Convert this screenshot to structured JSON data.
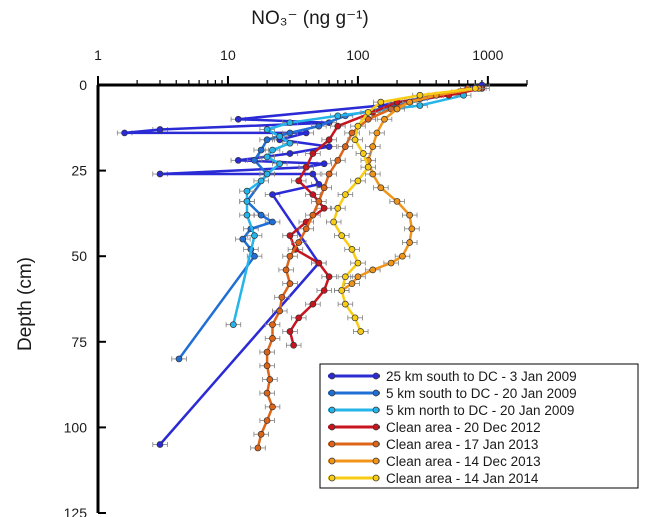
{
  "chart_data": {
    "type": "line",
    "title": "",
    "xlabel": "NO₃⁻ (ng g⁻¹)",
    "ylabel": "Depth (cm)",
    "x_scale": "log",
    "x_axis_position": "top",
    "y_inverted": true,
    "xlim": [
      1,
      2000
    ],
    "ylim": [
      0,
      125
    ],
    "x_ticks": [
      1,
      10,
      100,
      1000
    ],
    "x_tick_labels": [
      "1",
      "10",
      "100",
      "1000"
    ],
    "y_ticks": [
      0,
      25,
      50,
      75,
      100,
      125
    ],
    "y_tick_labels": [
      "0",
      "25",
      "50",
      "75",
      "100",
      "125"
    ],
    "grid": false,
    "legend_position": "bottom-right",
    "series": [
      {
        "name": "25 km  south to DC - 3 Jan 2009",
        "color": "#2b2bd6",
        "points": [
          [
            900,
            0
          ],
          [
            400,
            3
          ],
          [
            150,
            6
          ],
          [
            12,
            10
          ],
          [
            60,
            11
          ],
          [
            3,
            13
          ],
          [
            1.6,
            14
          ],
          [
            40,
            14
          ],
          [
            25,
            16
          ],
          [
            60,
            18
          ],
          [
            30,
            20
          ],
          [
            12,
            22
          ],
          [
            55,
            23
          ],
          [
            40,
            24
          ],
          [
            3,
            26
          ],
          [
            45,
            26
          ],
          [
            50,
            29
          ],
          [
            22,
            32
          ],
          [
            50,
            52
          ],
          [
            3,
            105
          ]
        ]
      },
      {
        "name": "5 km  south to DC - 20 Jan 2009",
        "color": "#1f6fd6",
        "points": [
          [
            600,
            2
          ],
          [
            200,
            6
          ],
          [
            80,
            9
          ],
          [
            50,
            12
          ],
          [
            30,
            14
          ],
          [
            20,
            16
          ],
          [
            18,
            19
          ],
          [
            16,
            22
          ],
          [
            20,
            26
          ],
          [
            14,
            34
          ],
          [
            18,
            38
          ],
          [
            22,
            40
          ],
          [
            15,
            42
          ],
          [
            13,
            45
          ],
          [
            15,
            48
          ],
          [
            16,
            50
          ],
          [
            4.2,
            80
          ]
        ]
      },
      {
        "name": "5 km  north to DC - 20 Jan 2009",
        "color": "#25b5ea",
        "points": [
          [
            650,
            3
          ],
          [
            300,
            6
          ],
          [
            70,
            9
          ],
          [
            30,
            11
          ],
          [
            20,
            13
          ],
          [
            25,
            15
          ],
          [
            30,
            17
          ],
          [
            22,
            19
          ],
          [
            20,
            21
          ],
          [
            25,
            23
          ],
          [
            20,
            26
          ],
          [
            18,
            28
          ],
          [
            14,
            31
          ],
          [
            14,
            34
          ],
          [
            14,
            38
          ],
          [
            16,
            44
          ],
          [
            11,
            70
          ]
        ]
      },
      {
        "name": "Clean area - 20 Dec 2012",
        "color": "#c8141e",
        "points": [
          [
            900,
            1
          ],
          [
            500,
            3
          ],
          [
            200,
            5
          ],
          [
            130,
            8
          ],
          [
            70,
            12
          ],
          [
            60,
            16
          ],
          [
            45,
            20
          ],
          [
            40,
            24
          ],
          [
            35,
            28
          ],
          [
            45,
            32
          ],
          [
            55,
            36
          ],
          [
            40,
            40
          ],
          [
            30,
            44
          ],
          [
            33,
            48
          ],
          [
            50,
            52
          ],
          [
            60,
            56
          ],
          [
            55,
            60
          ],
          [
            45,
            64
          ],
          [
            35,
            68
          ],
          [
            30,
            72
          ],
          [
            32,
            76
          ]
        ]
      },
      {
        "name": "Clean area - 17 Jan 2013",
        "color": "#de6418",
        "points": [
          [
            700,
            1
          ],
          [
            300,
            4
          ],
          [
            180,
            7
          ],
          [
            120,
            10
          ],
          [
            90,
            14
          ],
          [
            80,
            18
          ],
          [
            70,
            22
          ],
          [
            60,
            26
          ],
          [
            55,
            30
          ],
          [
            50,
            34
          ],
          [
            45,
            38
          ],
          [
            40,
            42
          ],
          [
            35,
            46
          ],
          [
            30,
            50
          ],
          [
            28,
            54
          ],
          [
            30,
            58
          ],
          [
            26,
            62
          ],
          [
            25,
            66
          ],
          [
            22,
            70
          ],
          [
            22,
            74
          ],
          [
            20,
            78
          ],
          [
            20,
            82
          ],
          [
            21,
            86
          ],
          [
            20,
            90
          ],
          [
            22,
            94
          ],
          [
            20,
            98
          ],
          [
            18,
            102
          ],
          [
            17,
            106
          ]
        ]
      },
      {
        "name": "Clean area - 14 Dec 2013",
        "color": "#f0951a",
        "points": [
          [
            850,
            1
          ],
          [
            400,
            3
          ],
          [
            250,
            5
          ],
          [
            200,
            7
          ],
          [
            160,
            10
          ],
          [
            140,
            14
          ],
          [
            130,
            18
          ],
          [
            120,
            22
          ],
          [
            130,
            26
          ],
          [
            150,
            30
          ],
          [
            200,
            34
          ],
          [
            250,
            38
          ],
          [
            260,
            42
          ],
          [
            250,
            46
          ],
          [
            220,
            50
          ],
          [
            180,
            52
          ],
          [
            130,
            54
          ],
          [
            100,
            56
          ],
          [
            90,
            58
          ],
          [
            75,
            60
          ]
        ]
      },
      {
        "name": "Clean area - 14 Jan 2014",
        "color": "#f7cc12",
        "points": [
          [
            800,
            1
          ],
          [
            300,
            3
          ],
          [
            150,
            5
          ],
          [
            120,
            8
          ],
          [
            100,
            12
          ],
          [
            95,
            16
          ],
          [
            110,
            20
          ],
          [
            120,
            24
          ],
          [
            100,
            28
          ],
          [
            80,
            32
          ],
          [
            70,
            36
          ],
          [
            65,
            40
          ],
          [
            75,
            44
          ],
          [
            90,
            48
          ],
          [
            100,
            52
          ],
          [
            80,
            56
          ],
          [
            75,
            60
          ],
          [
            80,
            64
          ],
          [
            95,
            68
          ],
          [
            105,
            72
          ]
        ]
      }
    ],
    "error_bar_color": "#808080"
  }
}
